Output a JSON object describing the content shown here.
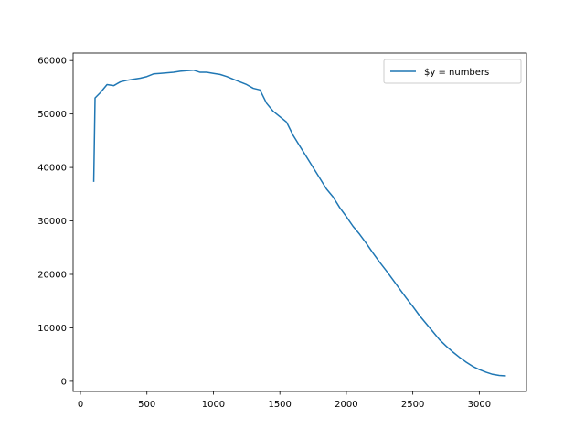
{
  "chart_data": {
    "type": "line",
    "x": [
      100,
      110,
      150,
      200,
      250,
      300,
      350,
      400,
      450,
      500,
      550,
      600,
      650,
      700,
      750,
      800,
      850,
      900,
      950,
      1000,
      1050,
      1100,
      1150,
      1200,
      1250,
      1300,
      1350,
      1400,
      1450,
      1500,
      1550,
      1600,
      1650,
      1700,
      1750,
      1800,
      1850,
      1900,
      1950,
      2000,
      2050,
      2100,
      2150,
      2200,
      2250,
      2300,
      2350,
      2400,
      2450,
      2500,
      2550,
      2600,
      2650,
      2700,
      2750,
      2800,
      2850,
      2900,
      2950,
      3000,
      3050,
      3100,
      3150,
      3200
    ],
    "series": [
      {
        "name": "$y = numbers",
        "color": "#1f77b4",
        "values": [
          37300,
          53000,
          54000,
          55500,
          55300,
          56000,
          56300,
          56500,
          56700,
          57000,
          57500,
          57600,
          57700,
          57800,
          58000,
          58100,
          58200,
          57800,
          57800,
          57600,
          57400,
          57000,
          56500,
          56000,
          55500,
          54800,
          54500,
          52000,
          50500,
          49500,
          48500,
          46000,
          44000,
          42000,
          40000,
          38000,
          36000,
          34500,
          32500,
          30800,
          29000,
          27500,
          25800,
          24000,
          22300,
          20700,
          19000,
          17300,
          15600,
          14000,
          12300,
          10800,
          9300,
          7800,
          6600,
          5500,
          4500,
          3600,
          2800,
          2200,
          1700,
          1300,
          1100,
          1000
        ]
      }
    ],
    "xlim": [
      -55,
      3355
    ],
    "xticks": [
      0,
      500,
      1000,
      1500,
      2000,
      2500,
      3000
    ],
    "ylim": [
      -1900,
      61400
    ],
    "yticks": [
      0,
      10000,
      20000,
      30000,
      40000,
      50000,
      60000
    ],
    "grid": false,
    "legend": "upper right"
  }
}
